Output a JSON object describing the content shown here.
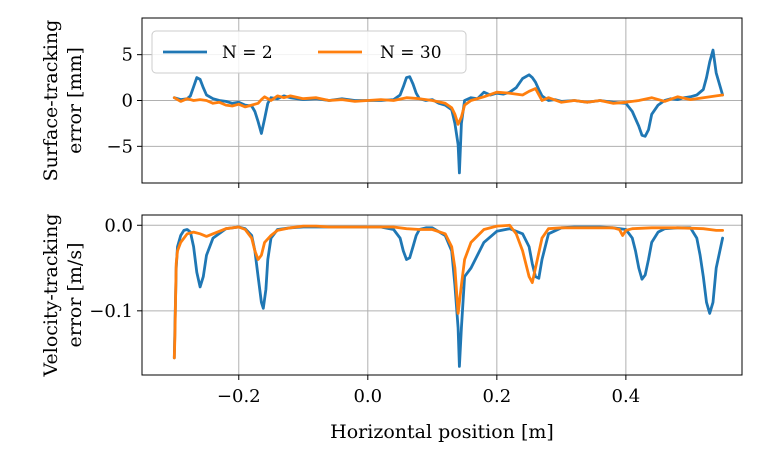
{
  "chart_data": [
    {
      "type": "line",
      "id": "surface",
      "ylabel_lines": [
        "Surface-tracking",
        "error [mm]"
      ],
      "ylim": [
        -9,
        9
      ],
      "yticks": [
        5,
        0,
        -5
      ],
      "ytick_labels": [
        "5",
        "0",
        "−5"
      ],
      "xlim": [
        -0.35,
        0.58
      ],
      "xticks": [
        -0.2,
        0.0,
        0.2,
        0.4
      ],
      "grid": true,
      "legend": {
        "placement": "top-left",
        "columns": 2
      },
      "series": [
        {
          "name": "N = 2",
          "color": "#1f77b4",
          "x": [
            -0.3,
            -0.29,
            -0.28,
            -0.275,
            -0.27,
            -0.265,
            -0.26,
            -0.255,
            -0.25,
            -0.24,
            -0.23,
            -0.22,
            -0.21,
            -0.2,
            -0.19,
            -0.18,
            -0.175,
            -0.17,
            -0.165,
            -0.16,
            -0.155,
            -0.15,
            -0.14,
            -0.13,
            -0.12,
            -0.1,
            -0.08,
            -0.06,
            -0.04,
            -0.02,
            0.0,
            0.02,
            0.04,
            0.05,
            0.055,
            0.06,
            0.065,
            0.07,
            0.075,
            0.08,
            0.09,
            0.1,
            0.11,
            0.12,
            0.13,
            0.135,
            0.14,
            0.142,
            0.145,
            0.15,
            0.16,
            0.17,
            0.18,
            0.19,
            0.2,
            0.21,
            0.22,
            0.23,
            0.24,
            0.25,
            0.255,
            0.26,
            0.265,
            0.27,
            0.28,
            0.29,
            0.3,
            0.32,
            0.34,
            0.36,
            0.38,
            0.4,
            0.41,
            0.42,
            0.425,
            0.43,
            0.435,
            0.44,
            0.45,
            0.46,
            0.47,
            0.48,
            0.49,
            0.5,
            0.51,
            0.52,
            0.525,
            0.53,
            0.535,
            0.54,
            0.55
          ],
          "y": [
            0.3,
            0.1,
            0.2,
            0.5,
            1.5,
            2.5,
            2.3,
            1.4,
            0.6,
            0.2,
            0.0,
            -0.1,
            -0.3,
            -0.2,
            -0.5,
            -0.6,
            -1.2,
            -2.3,
            -3.6,
            -2.0,
            -0.3,
            0.3,
            0.2,
            0.5,
            0.3,
            0.1,
            0.2,
            0.0,
            0.2,
            0.0,
            0.0,
            0.0,
            0.1,
            0.6,
            1.5,
            2.5,
            2.6,
            1.8,
            0.8,
            0.2,
            0.0,
            0.1,
            -0.3,
            -0.5,
            -1.0,
            -2.5,
            -4.8,
            -7.9,
            -2.5,
            0.0,
            0.3,
            0.2,
            0.9,
            0.6,
            0.8,
            0.7,
            0.9,
            1.4,
            2.4,
            2.8,
            2.5,
            2.0,
            1.2,
            0.5,
            0.0,
            0.1,
            -0.1,
            0.0,
            -0.2,
            0.0,
            -0.2,
            -0.3,
            -1.2,
            -2.8,
            -3.8,
            -3.9,
            -3.2,
            -1.5,
            -0.5,
            0.0,
            0.2,
            0.1,
            0.3,
            0.4,
            0.6,
            1.2,
            2.5,
            4.2,
            5.5,
            3.0,
            0.6
          ]
        },
        {
          "name": "N = 30",
          "color": "#ff7f0e",
          "x": [
            -0.3,
            -0.29,
            -0.28,
            -0.27,
            -0.26,
            -0.25,
            -0.24,
            -0.23,
            -0.22,
            -0.21,
            -0.2,
            -0.19,
            -0.18,
            -0.17,
            -0.165,
            -0.16,
            -0.15,
            -0.14,
            -0.13,
            -0.12,
            -0.1,
            -0.08,
            -0.06,
            -0.04,
            -0.02,
            0.0,
            0.02,
            0.04,
            0.06,
            0.08,
            0.1,
            0.12,
            0.13,
            0.135,
            0.14,
            0.145,
            0.15,
            0.16,
            0.18,
            0.2,
            0.22,
            0.24,
            0.25,
            0.26,
            0.27,
            0.28,
            0.3,
            0.32,
            0.34,
            0.36,
            0.38,
            0.4,
            0.42,
            0.44,
            0.46,
            0.48,
            0.5,
            0.52,
            0.54,
            0.55
          ],
          "y": [
            0.3,
            -0.1,
            0.2,
            0.0,
            0.1,
            0.0,
            -0.3,
            -0.2,
            -0.5,
            -0.6,
            -0.4,
            -0.7,
            -0.5,
            -0.3,
            0.1,
            0.4,
            0.0,
            0.5,
            0.3,
            0.5,
            0.2,
            0.3,
            0.0,
            0.1,
            -0.1,
            0.0,
            0.1,
            0.0,
            0.3,
            0.2,
            0.0,
            -0.3,
            -0.8,
            -1.5,
            -2.6,
            -1.8,
            -0.5,
            0.0,
            0.4,
            0.9,
            0.8,
            0.6,
            1.0,
            1.3,
            0.0,
            0.3,
            -0.2,
            0.0,
            -0.2,
            0.0,
            -0.3,
            -0.2,
            0.0,
            0.3,
            -0.1,
            0.4,
            0.1,
            0.3,
            0.5,
            0.6
          ]
        }
      ]
    },
    {
      "type": "line",
      "id": "velocity",
      "ylabel_lines": [
        "Velocity-tracking",
        "error [m/s]"
      ],
      "ylim": [
        -0.175,
        0.012
      ],
      "yticks": [
        0.0,
        -0.1
      ],
      "ytick_labels": [
        "0.0",
        "−0.1"
      ],
      "xlim": [
        -0.35,
        0.58
      ],
      "xticks": [
        -0.2,
        0.0,
        0.2,
        0.4
      ],
      "xtick_labels": [
        "−0.2",
        "0.0",
        "0.2",
        "0.4"
      ],
      "xlabel": "Horizontal position [m]",
      "grid": true,
      "series": [
        {
          "name": "N = 2",
          "color": "#1f77b4",
          "x": [
            -0.3,
            -0.299,
            -0.297,
            -0.295,
            -0.29,
            -0.285,
            -0.28,
            -0.275,
            -0.27,
            -0.265,
            -0.26,
            -0.255,
            -0.25,
            -0.24,
            -0.22,
            -0.2,
            -0.19,
            -0.18,
            -0.175,
            -0.17,
            -0.165,
            -0.162,
            -0.158,
            -0.155,
            -0.15,
            -0.14,
            -0.12,
            -0.1,
            -0.08,
            -0.06,
            -0.04,
            0.0,
            0.02,
            0.04,
            0.05,
            0.055,
            0.06,
            0.065,
            0.07,
            0.075,
            0.08,
            0.09,
            0.1,
            0.12,
            0.13,
            0.135,
            0.14,
            0.142,
            0.145,
            0.15,
            0.16,
            0.18,
            0.2,
            0.22,
            0.24,
            0.25,
            0.255,
            0.26,
            0.265,
            0.27,
            0.28,
            0.3,
            0.32,
            0.34,
            0.36,
            0.38,
            0.4,
            0.41,
            0.415,
            0.42,
            0.425,
            0.43,
            0.435,
            0.44,
            0.45,
            0.46,
            0.48,
            0.5,
            0.51,
            0.515,
            0.52,
            0.525,
            0.53,
            0.535,
            0.54,
            0.55
          ],
          "y": [
            -0.155,
            -0.12,
            -0.05,
            -0.025,
            -0.012,
            -0.006,
            -0.005,
            -0.008,
            -0.025,
            -0.055,
            -0.072,
            -0.06,
            -0.035,
            -0.015,
            -0.004,
            -0.002,
            -0.004,
            -0.012,
            -0.03,
            -0.06,
            -0.09,
            -0.097,
            -0.075,
            -0.04,
            -0.015,
            -0.005,
            -0.003,
            -0.002,
            -0.002,
            -0.002,
            -0.002,
            -0.002,
            -0.002,
            -0.005,
            -0.015,
            -0.03,
            -0.04,
            -0.038,
            -0.025,
            -0.012,
            -0.005,
            -0.003,
            -0.003,
            -0.012,
            -0.03,
            -0.07,
            -0.12,
            -0.165,
            -0.12,
            -0.06,
            -0.05,
            -0.02,
            -0.007,
            -0.004,
            -0.01,
            -0.025,
            -0.045,
            -0.06,
            -0.062,
            -0.04,
            -0.01,
            -0.003,
            -0.002,
            -0.002,
            -0.002,
            -0.003,
            -0.005,
            -0.015,
            -0.03,
            -0.05,
            -0.063,
            -0.058,
            -0.04,
            -0.02,
            -0.008,
            -0.004,
            -0.003,
            -0.003,
            -0.015,
            -0.035,
            -0.06,
            -0.09,
            -0.103,
            -0.09,
            -0.05,
            -0.015
          ]
        },
        {
          "name": "N = 30",
          "color": "#ff7f0e",
          "x": [
            -0.3,
            -0.299,
            -0.297,
            -0.295,
            -0.29,
            -0.28,
            -0.27,
            -0.26,
            -0.25,
            -0.24,
            -0.22,
            -0.2,
            -0.19,
            -0.18,
            -0.175,
            -0.17,
            -0.165,
            -0.16,
            -0.15,
            -0.14,
            -0.12,
            -0.1,
            -0.08,
            -0.06,
            -0.04,
            0.0,
            0.02,
            0.04,
            0.06,
            0.08,
            0.1,
            0.12,
            0.13,
            0.135,
            0.14,
            0.145,
            0.15,
            0.16,
            0.18,
            0.2,
            0.22,
            0.23,
            0.24,
            0.25,
            0.255,
            0.26,
            0.27,
            0.28,
            0.3,
            0.34,
            0.38,
            0.39,
            0.395,
            0.4,
            0.41,
            0.44,
            0.48,
            0.52,
            0.54,
            0.55
          ],
          "y": [
            -0.155,
            -0.13,
            -0.045,
            -0.03,
            -0.02,
            -0.01,
            -0.008,
            -0.01,
            -0.013,
            -0.01,
            -0.004,
            -0.002,
            -0.005,
            -0.015,
            -0.03,
            -0.04,
            -0.035,
            -0.02,
            -0.012,
            -0.006,
            -0.003,
            -0.001,
            -0.001,
            -0.002,
            -0.002,
            -0.002,
            -0.002,
            -0.002,
            -0.004,
            -0.005,
            -0.005,
            -0.01,
            -0.025,
            -0.05,
            -0.103,
            -0.07,
            -0.04,
            -0.02,
            -0.005,
            -0.001,
            0.0,
            -0.01,
            -0.03,
            -0.06,
            -0.067,
            -0.05,
            -0.015,
            -0.004,
            -0.003,
            -0.003,
            -0.003,
            -0.005,
            -0.012,
            -0.006,
            -0.004,
            -0.003,
            -0.003,
            -0.004,
            -0.006,
            -0.006
          ]
        }
      ]
    }
  ]
}
